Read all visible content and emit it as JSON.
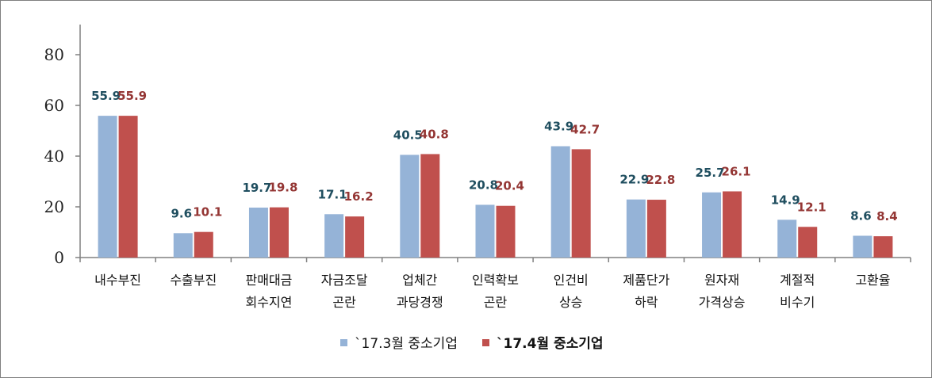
{
  "chart_data": {
    "type": "bar",
    "title": "",
    "xlabel": "",
    "ylabel": "",
    "ylim": [
      0,
      90
    ],
    "yticks": [
      0,
      20,
      40,
      60,
      80
    ],
    "categories": [
      [
        "내수부진"
      ],
      [
        "수출부진"
      ],
      [
        "판매대금",
        "회수지연"
      ],
      [
        "자금조달",
        "곤란"
      ],
      [
        "업체간",
        "과당경쟁"
      ],
      [
        "인력확보",
        "곤란"
      ],
      [
        "인건비",
        "상승"
      ],
      [
        "제품단가",
        "하락"
      ],
      [
        "원자재",
        "가격상승"
      ],
      [
        "계절적",
        "비수기"
      ],
      [
        "고환율"
      ]
    ],
    "series": [
      {
        "name": "`17.3월 중소기업",
        "color": "#95b3d7",
        "label_color": "#1f4e5f",
        "values": [
          55.9,
          9.6,
          19.7,
          17.1,
          40.5,
          20.8,
          43.9,
          22.9,
          25.7,
          14.9,
          8.6
        ]
      },
      {
        "name": "`17.4월 중소기업",
        "color": "#c0504d",
        "label_color": "#943634",
        "values": [
          55.9,
          10.1,
          19.8,
          16.2,
          40.8,
          20.4,
          42.7,
          22.8,
          26.1,
          12.1,
          8.4
        ]
      }
    ],
    "grid": false,
    "legend_position": "bottom"
  }
}
